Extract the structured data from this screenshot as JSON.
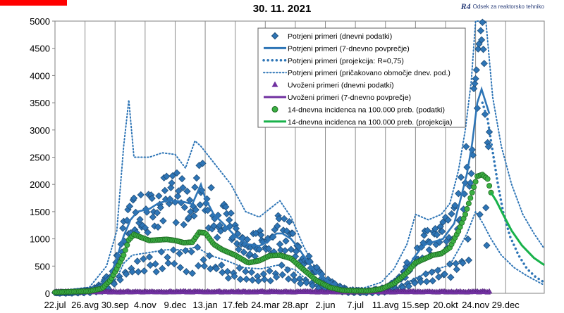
{
  "title": "30. 11. 2021",
  "logo": {
    "mark": "R4",
    "text": "Odsek za reaktorsko tehniko"
  },
  "colors": {
    "blue": "#2e75b6",
    "diamond_fill": "#2e75b6",
    "diamond_stroke": "#1f4e79",
    "purple": "#7030a0",
    "green_line": "#19b24b",
    "green_marker": "#3cb043",
    "brand_red": "#ff0000"
  },
  "chart_data": {
    "type": "scatter",
    "title": "30. 11. 2021",
    "xlabel": "",
    "ylabel": "",
    "ylim": [
      0,
      5000
    ],
    "yticks": [
      0,
      500,
      1000,
      1500,
      2000,
      2500,
      3000,
      3500,
      4000,
      4500,
      5000
    ],
    "xticks": [
      "22.jul",
      "26.avg",
      "30.sep",
      "4.nov",
      "9.dec",
      "13.jan",
      "17.feb",
      "24.mar",
      "28.apr",
      "2.jun",
      "7.jul",
      "11.avg",
      "15.sep",
      "20.okt",
      "24.nov",
      "29.dec"
    ],
    "x_tick_interval_days": 35,
    "grid": "vertical",
    "legend": {
      "position": "top-right",
      "entries": [
        {
          "label": "Potrjeni primeri (dnevni podatki)",
          "kind": "diamond",
          "color": "#2e75b6"
        },
        {
          "label": "Potrjeni primeri (7-dnevno povprečje)",
          "kind": "line",
          "color": "#2e75b6"
        },
        {
          "label": "Potrjeni primeri (projekcija: R=0,75)",
          "kind": "dots-thick",
          "color": "#2e75b6"
        },
        {
          "label": "Potrjeni primeri (pričakovano območje dnev. pod.)",
          "kind": "dots",
          "color": "#2e75b6"
        },
        {
          "label": "Uvoženi primeri (dnevni podatki)",
          "kind": "triangle",
          "color": "#7030a0"
        },
        {
          "label": "Uvoženi primeri (7-dnevno povprečje)",
          "kind": "line",
          "color": "#7030a0"
        },
        {
          "label": "14-dnevna incidenca na 100.000 preb. (podatki)",
          "kind": "circle",
          "color": "#3cb043"
        },
        {
          "label": "14-dnevna incidenca na 100.000 preb. (projekcija)",
          "kind": "line",
          "color": "#19b24b"
        }
      ]
    },
    "series": [
      {
        "name": "Potrjeni primeri (7-dnevno povprečje)",
        "points": [
          [
            0,
            12
          ],
          [
            20,
            18
          ],
          [
            40,
            50
          ],
          [
            55,
            150
          ],
          [
            65,
            330
          ],
          [
            72,
            650
          ],
          [
            80,
            1050
          ],
          [
            88,
            1350
          ],
          [
            96,
            1500
          ],
          [
            110,
            1550
          ],
          [
            120,
            1650
          ],
          [
            130,
            1700
          ],
          [
            140,
            1700
          ],
          [
            150,
            1680
          ],
          [
            160,
            1640
          ],
          [
            170,
            2000
          ],
          [
            175,
            1750
          ],
          [
            185,
            1450
          ],
          [
            195,
            1300
          ],
          [
            210,
            1050
          ],
          [
            225,
            900
          ],
          [
            238,
            870
          ],
          [
            248,
            950
          ],
          [
            258,
            1100
          ],
          [
            265,
            1100
          ],
          [
            275,
            1000
          ],
          [
            285,
            800
          ],
          [
            300,
            450
          ],
          [
            315,
            250
          ],
          [
            330,
            110
          ],
          [
            345,
            50
          ],
          [
            360,
            40
          ],
          [
            375,
            60
          ],
          [
            390,
            120
          ],
          [
            400,
            230
          ],
          [
            410,
            430
          ],
          [
            418,
            650
          ],
          [
            425,
            800
          ],
          [
            432,
            900
          ],
          [
            442,
            950
          ],
          [
            452,
            1000
          ],
          [
            458,
            1130
          ],
          [
            465,
            1280
          ],
          [
            472,
            1700
          ],
          [
            480,
            2200
          ],
          [
            486,
            2750
          ],
          [
            492,
            3500
          ],
          [
            497,
            3750
          ],
          [
            502,
            3500
          ],
          [
            506,
            3300
          ]
        ]
      },
      {
        "name": "Potrjeni primeri (projekcija: R=0,75)",
        "points": [
          [
            498,
            3500
          ],
          [
            504,
            3200
          ],
          [
            510,
            2600
          ],
          [
            516,
            2000
          ],
          [
            522,
            1500
          ],
          [
            530,
            1050
          ],
          [
            540,
            700
          ],
          [
            550,
            450
          ],
          [
            560,
            300
          ],
          [
            570,
            200
          ]
        ]
      },
      {
        "name": "pričakovano območje (zgornja meja)",
        "points": [
          [
            0,
            40
          ],
          [
            40,
            110
          ],
          [
            60,
            500
          ],
          [
            72,
            1150
          ],
          [
            80,
            2700
          ],
          [
            86,
            3550
          ],
          [
            92,
            2500
          ],
          [
            110,
            2500
          ],
          [
            125,
            2580
          ],
          [
            140,
            2550
          ],
          [
            152,
            2300
          ],
          [
            163,
            2800
          ],
          [
            170,
            2700
          ],
          [
            180,
            2500
          ],
          [
            190,
            2300
          ],
          [
            205,
            2000
          ],
          [
            222,
            1500
          ],
          [
            238,
            1400
          ],
          [
            250,
            1550
          ],
          [
            262,
            1700
          ],
          [
            275,
            1400
          ],
          [
            290,
            850
          ],
          [
            305,
            420
          ],
          [
            320,
            200
          ],
          [
            340,
            80
          ],
          [
            360,
            100
          ],
          [
            380,
            200
          ],
          [
            395,
            450
          ],
          [
            410,
            900
          ],
          [
            420,
            1450
          ],
          [
            435,
            1350
          ],
          [
            450,
            1450
          ],
          [
            460,
            1650
          ],
          [
            470,
            2250
          ],
          [
            478,
            3000
          ],
          [
            485,
            3900
          ],
          [
            490,
            5000
          ],
          [
            496,
            5000
          ],
          [
            502,
            5000
          ],
          [
            510,
            3600
          ],
          [
            520,
            2700
          ],
          [
            532,
            2000
          ],
          [
            545,
            1450
          ],
          [
            558,
            1100
          ],
          [
            570,
            820
          ]
        ]
      },
      {
        "name": "pričakovano območje (spodnja meja)",
        "points": [
          [
            0,
            0
          ],
          [
            40,
            10
          ],
          [
            60,
            120
          ],
          [
            72,
            280
          ],
          [
            80,
            550
          ],
          [
            90,
            700
          ],
          [
            110,
            750
          ],
          [
            130,
            800
          ],
          [
            150,
            800
          ],
          [
            165,
            850
          ],
          [
            180,
            700
          ],
          [
            200,
            600
          ],
          [
            220,
            470
          ],
          [
            240,
            450
          ],
          [
            260,
            520
          ],
          [
            280,
            430
          ],
          [
            300,
            150
          ],
          [
            320,
            60
          ],
          [
            340,
            10
          ],
          [
            360,
            10
          ],
          [
            380,
            40
          ],
          [
            400,
            110
          ],
          [
            420,
            280
          ],
          [
            440,
            420
          ],
          [
            460,
            520
          ],
          [
            470,
            800
          ],
          [
            480,
            1100
          ],
          [
            490,
            1500
          ],
          [
            498,
            1300
          ],
          [
            508,
            1000
          ],
          [
            520,
            700
          ],
          [
            535,
            470
          ],
          [
            550,
            320
          ],
          [
            570,
            150
          ]
        ]
      },
      {
        "name": "14-dnevna incidenca na 100.000 preb. (podatki)",
        "points": [
          [
            0,
            20
          ],
          [
            20,
            30
          ],
          [
            40,
            40
          ],
          [
            55,
            90
          ],
          [
            65,
            250
          ],
          [
            72,
            450
          ],
          [
            80,
            700
          ],
          [
            86,
            980
          ],
          [
            92,
            1080
          ],
          [
            100,
            1030
          ],
          [
            110,
            970
          ],
          [
            120,
            980
          ],
          [
            130,
            990
          ],
          [
            140,
            970
          ],
          [
            150,
            930
          ],
          [
            160,
            940
          ],
          [
            168,
            1120
          ],
          [
            175,
            1110
          ],
          [
            185,
            900
          ],
          [
            195,
            800
          ],
          [
            210,
            700
          ],
          [
            225,
            560
          ],
          [
            238,
            600
          ],
          [
            250,
            690
          ],
          [
            262,
            700
          ],
          [
            275,
            640
          ],
          [
            290,
            430
          ],
          [
            305,
            230
          ],
          [
            320,
            110
          ],
          [
            335,
            55
          ],
          [
            350,
            45
          ],
          [
            365,
            45
          ],
          [
            380,
            80
          ],
          [
            395,
            180
          ],
          [
            410,
            380
          ],
          [
            420,
            560
          ],
          [
            430,
            630
          ],
          [
            440,
            700
          ],
          [
            450,
            730
          ],
          [
            460,
            840
          ],
          [
            470,
            1140
          ],
          [
            478,
            1450
          ],
          [
            486,
            1850
          ],
          [
            492,
            2150
          ],
          [
            498,
            2180
          ],
          [
            504,
            2100
          ],
          [
            508,
            1850
          ]
        ]
      },
      {
        "name": "14-dnevna incidenca na 100.000 preb. (projekcija)",
        "points": [
          [
            508,
            1850
          ],
          [
            514,
            1700
          ],
          [
            522,
            1450
          ],
          [
            532,
            1150
          ],
          [
            544,
            880
          ],
          [
            558,
            650
          ],
          [
            570,
            520
          ]
        ]
      },
      {
        "name": "Uvoženi primeri (7-dnevno povprečje)",
        "points": [
          [
            0,
            5
          ],
          [
            100,
            5
          ],
          [
            200,
            5
          ],
          [
            300,
            5
          ],
          [
            400,
            5
          ],
          [
            506,
            5
          ]
        ]
      }
    ]
  },
  "daily_seed": 7
}
